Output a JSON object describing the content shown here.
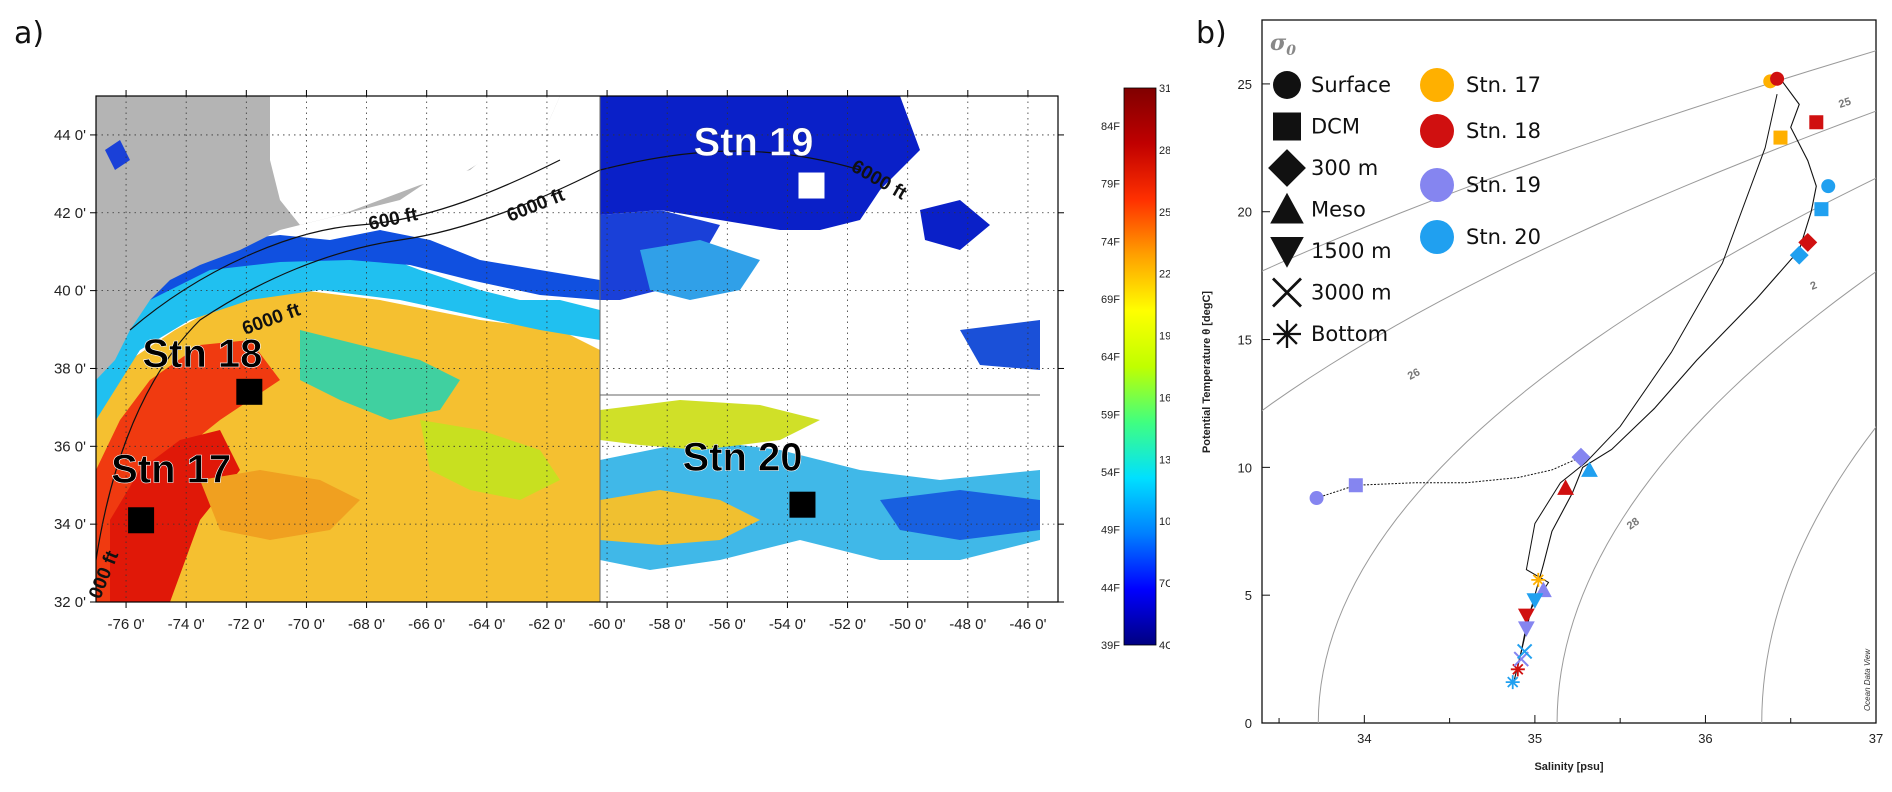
{
  "panel_a": {
    "label": "a)",
    "stations": [
      {
        "name": "Stn 17",
        "lon": -75.5,
        "lat": 34.1,
        "marker_color": "#000000",
        "text_color": "#000000"
      },
      {
        "name": "Stn 18",
        "lon": -71.9,
        "lat": 37.4,
        "marker_color": "#000000",
        "text_color": "#000000"
      },
      {
        "name": "Stn 19",
        "lon": -53.2,
        "lat": 42.7,
        "marker_color": "#ffffff",
        "text_color": "#ffffff"
      },
      {
        "name": "Stn 20",
        "lon": -53.5,
        "lat": 34.5,
        "marker_color": "#000000",
        "text_color": "#000000"
      }
    ],
    "depth_labels": [
      "600 ft",
      "6000 ft",
      "6000 ft",
      "000 ft",
      "6000 ft"
    ],
    "colorbar": {
      "celsius": [
        "31C",
        "28C",
        "25C",
        "22C",
        "19C",
        "16C",
        "13C",
        "10C",
        "7C",
        "4C"
      ],
      "fahrenheit": [
        "84F",
        "79F",
        "74F",
        "69F",
        "64F",
        "59F",
        "54F",
        "49F",
        "44F",
        "39F"
      ],
      "colors": [
        "#000080",
        "#0000ff",
        "#0080ff",
        "#00e0ff",
        "#40ff80",
        "#c0ff00",
        "#ffff00",
        "#ffa000",
        "#ff3000",
        "#c00000",
        "#800000"
      ]
    }
  },
  "chart_data": [
    {
      "type": "map",
      "xlabel": "",
      "ylabel": "",
      "xlim": [
        -77,
        -45
      ],
      "ylim": [
        32,
        45
      ],
      "x_ticks": [
        -76,
        -74,
        -72,
        -70,
        -68,
        -66,
        -64,
        -62,
        -60,
        -58,
        -56,
        -54,
        -52,
        -50,
        -48,
        -46
      ],
      "x_tick_labels": [
        "-76 0'",
        "-74 0'",
        "-72 0'",
        "-70 0'",
        "-68 0'",
        "-66 0'",
        "-64 0'",
        "-62 0'",
        "-60 0'",
        "-58 0'",
        "-56 0'",
        "-54 0'",
        "-52 0'",
        "-50 0'",
        "-48 0'",
        "-46 0'"
      ],
      "y_ticks": [
        32,
        34,
        36,
        38,
        40,
        42,
        44
      ],
      "y_tick_labels": [
        "32 0'",
        "34 0'",
        "36 0'",
        "38 0'",
        "40 0'",
        "42 0'",
        "44 0'"
      ],
      "grid": true
    },
    {
      "type": "scatter",
      "xlabel": "Salinity [psu]",
      "ylabel": "Potential Temperature θ [degC]",
      "corner_label": "σ0",
      "watermark": "Ocean Data View",
      "xlim": [
        33.4,
        37
      ],
      "ylim": [
        0,
        27.5
      ],
      "x_ticks": [
        34,
        35,
        36,
        37
      ],
      "y_ticks": [
        0,
        5,
        10,
        15,
        20,
        25
      ],
      "isopycnal_labels": [
        "25",
        "26",
        "28",
        "2"
      ],
      "marker_legend": [
        "Surface",
        "DCM",
        "300 m",
        "Meso",
        "1500 m",
        "3000 m",
        "Bottom"
      ],
      "series": [
        {
          "name": "Stn. 17",
          "color": "#ffb000",
          "points": [
            {
              "depth": "Surface",
              "x": 36.38,
              "y": 25.1
            },
            {
              "depth": "DCM",
              "x": 36.44,
              "y": 22.9
            },
            {
              "depth": "Bottom",
              "x": 35.02,
              "y": 5.6
            }
          ]
        },
        {
          "name": "Stn. 18",
          "color": "#d01010",
          "points": [
            {
              "depth": "Surface",
              "x": 36.42,
              "y": 25.2
            },
            {
              "depth": "DCM",
              "x": 36.65,
              "y": 23.5
            },
            {
              "depth": "300 m",
              "x": 36.6,
              "y": 18.8
            },
            {
              "depth": "Meso",
              "x": 35.18,
              "y": 9.2
            },
            {
              "depth": "1500 m",
              "x": 34.95,
              "y": 4.2
            },
            {
              "depth": "Bottom",
              "x": 34.9,
              "y": 2.1
            }
          ]
        },
        {
          "name": "Stn. 19",
          "color": "#8585f0",
          "points": [
            {
              "depth": "Surface",
              "x": 33.72,
              "y": 8.8
            },
            {
              "depth": "DCM",
              "x": 33.95,
              "y": 9.3
            },
            {
              "depth": "300 m",
              "x": 35.27,
              "y": 10.4
            },
            {
              "depth": "Meso",
              "x": 35.05,
              "y": 5.2
            },
            {
              "depth": "1500 m",
              "x": 34.95,
              "y": 3.7
            },
            {
              "depth": "3000 m",
              "x": 34.92,
              "y": 2.5
            }
          ]
        },
        {
          "name": "Stn. 20",
          "color": "#20a0f0",
          "points": [
            {
              "depth": "Surface",
              "x": 36.72,
              "y": 21.0
            },
            {
              "depth": "DCM",
              "x": 36.68,
              "y": 20.1
            },
            {
              "depth": "300 m",
              "x": 36.55,
              "y": 18.3
            },
            {
              "depth": "Meso",
              "x": 35.32,
              "y": 9.9
            },
            {
              "depth": "1500 m",
              "x": 35.0,
              "y": 4.8
            },
            {
              "depth": "3000 m",
              "x": 34.94,
              "y": 2.8
            },
            {
              "depth": "Bottom",
              "x": 34.87,
              "y": 1.6
            }
          ]
        }
      ]
    }
  ],
  "panel_b": {
    "label": "b)"
  }
}
